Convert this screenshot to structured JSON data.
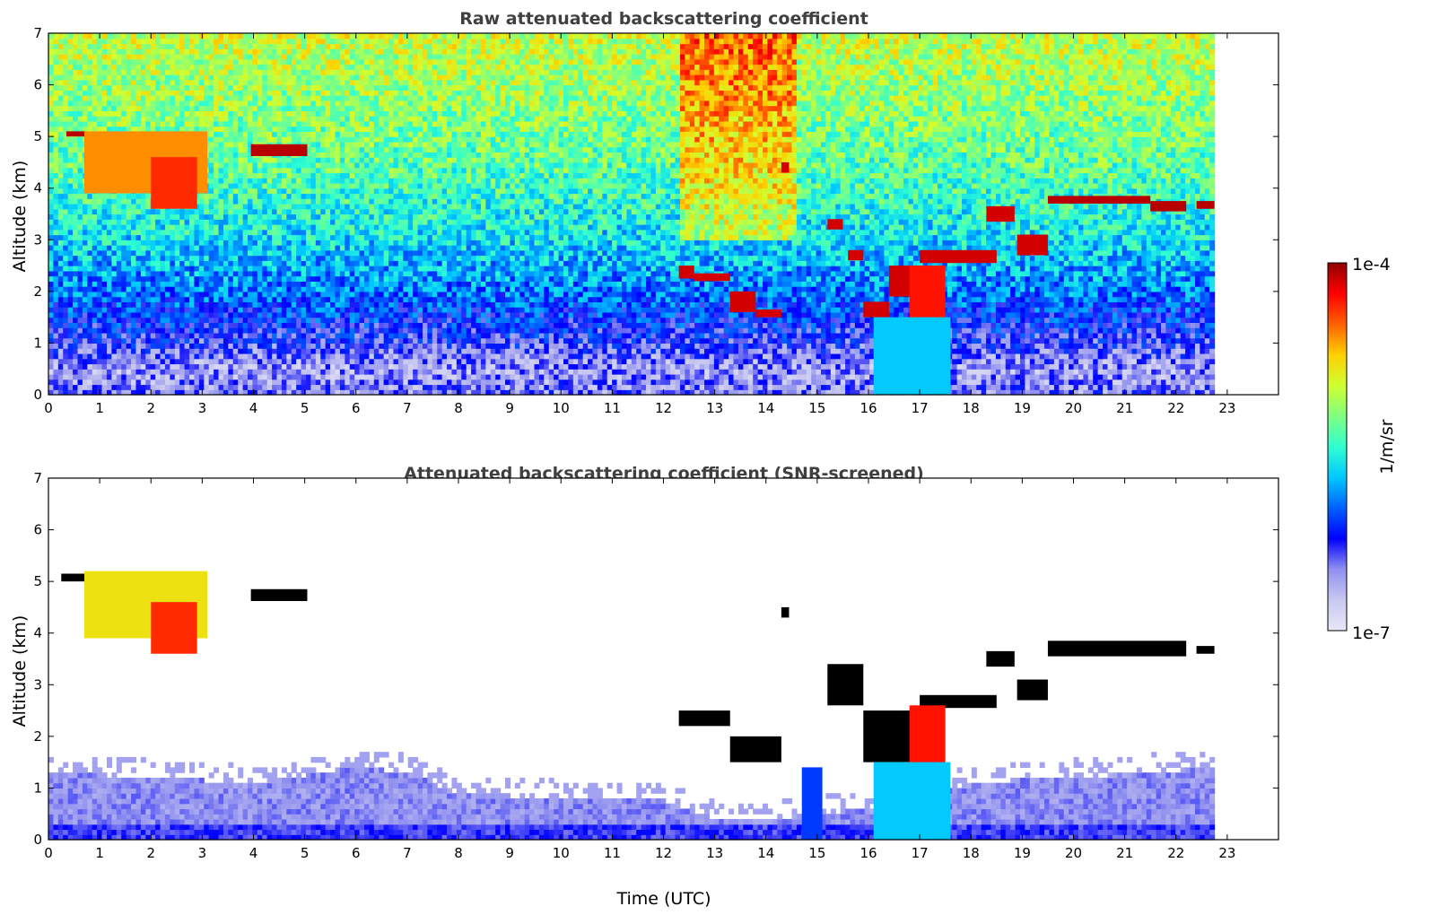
{
  "chart_data": [
    {
      "type": "heatmap",
      "title": "Raw attenuated backscattering coefficient",
      "xlabel": "",
      "ylabel": "Altitude (km)",
      "xlim": [
        0,
        24
      ],
      "ylim": [
        0,
        7
      ],
      "x_ticks": [
        "0",
        "1",
        "2",
        "3",
        "4",
        "5",
        "6",
        "7",
        "8",
        "9",
        "10",
        "11",
        "12",
        "13",
        "14",
        "15",
        "16",
        "17",
        "18",
        "19",
        "20",
        "21",
        "22",
        "23"
      ],
      "y_ticks": [
        "0",
        "1",
        "2",
        "3",
        "4",
        "5",
        "6",
        "7"
      ],
      "data_end_time": 22.75,
      "background_profile": [
        {
          "altitude": 0.0,
          "level": 0.18
        },
        {
          "altitude": 0.5,
          "level": 0.14
        },
        {
          "altitude": 1.0,
          "level": 0.22
        },
        {
          "altitude": 2.0,
          "level": 0.35
        },
        {
          "altitude": 3.0,
          "level": 0.45
        },
        {
          "altitude": 4.5,
          "level": 0.55
        },
        {
          "altitude": 7.0,
          "level": 0.66
        }
      ],
      "cloud_layers": [
        {
          "t0": 0.35,
          "t1": 0.75,
          "z0": 5.0,
          "z1": 5.1,
          "level": 0.97
        },
        {
          "t0": 0.7,
          "t1": 3.1,
          "z0": 3.9,
          "z1": 5.1,
          "level": 0.8
        },
        {
          "t0": 2.0,
          "t1": 2.9,
          "z0": 3.6,
          "z1": 4.6,
          "level": 0.88
        },
        {
          "t0": 3.95,
          "t1": 5.05,
          "z0": 4.62,
          "z1": 4.85,
          "level": 0.97
        },
        {
          "t0": 12.3,
          "t1": 12.6,
          "z0": 2.25,
          "z1": 2.5,
          "level": 0.95
        },
        {
          "t0": 12.6,
          "t1": 13.3,
          "z0": 2.2,
          "z1": 2.35,
          "level": 0.95
        },
        {
          "t0": 13.3,
          "t1": 13.8,
          "z0": 1.6,
          "z1": 2.0,
          "level": 0.95
        },
        {
          "t0": 13.8,
          "t1": 14.3,
          "z0": 1.5,
          "z1": 1.65,
          "level": 0.95
        },
        {
          "t0": 14.3,
          "t1": 14.45,
          "z0": 4.3,
          "z1": 4.5,
          "level": 0.95
        },
        {
          "t0": 15.2,
          "t1": 15.5,
          "z0": 3.2,
          "z1": 3.4,
          "level": 0.95
        },
        {
          "t0": 15.6,
          "t1": 15.9,
          "z0": 2.6,
          "z1": 2.8,
          "level": 0.95
        },
        {
          "t0": 15.9,
          "t1": 16.4,
          "z0": 1.5,
          "z1": 1.8,
          "level": 0.95
        },
        {
          "t0": 16.4,
          "t1": 17.0,
          "z0": 1.9,
          "z1": 2.5,
          "level": 0.95
        },
        {
          "t0": 17.0,
          "t1": 18.5,
          "z0": 2.55,
          "z1": 2.8,
          "level": 0.95
        },
        {
          "t0": 18.3,
          "t1": 18.85,
          "z0": 3.35,
          "z1": 3.65,
          "level": 0.95
        },
        {
          "t0": 18.9,
          "t1": 19.5,
          "z0": 2.7,
          "z1": 3.1,
          "level": 0.95
        },
        {
          "t0": 19.5,
          "t1": 21.5,
          "z0": 3.7,
          "z1": 3.85,
          "level": 0.97
        },
        {
          "t0": 21.5,
          "t1": 22.2,
          "z0": 3.55,
          "z1": 3.75,
          "level": 0.97
        },
        {
          "t0": 22.4,
          "t1": 22.75,
          "z0": 3.6,
          "z1": 3.75,
          "level": 0.97
        },
        {
          "t0": 16.8,
          "t1": 17.5,
          "z0": 1.3,
          "z1": 2.5,
          "level": 0.9
        },
        {
          "t0": 16.1,
          "t1": 17.6,
          "z0": 0.0,
          "z1": 1.5,
          "level": 0.42
        }
      ]
    },
    {
      "type": "heatmap",
      "title": "Attenuated backscattering coefficient (SNR-screened)",
      "xlabel": "Time (UTC)",
      "ylabel": "Altitude (km)",
      "xlim": [
        0,
        24
      ],
      "ylim": [
        0,
        7
      ],
      "x_ticks": [
        "0",
        "1",
        "2",
        "3",
        "4",
        "5",
        "6",
        "7",
        "8",
        "9",
        "10",
        "11",
        "12",
        "13",
        "14",
        "15",
        "16",
        "17",
        "18",
        "19",
        "20",
        "21",
        "22",
        "23"
      ],
      "y_ticks": [
        "0",
        "1",
        "2",
        "3",
        "4",
        "5",
        "6",
        "7"
      ],
      "data_end_time": 22.75,
      "boundary_layer_top": [
        {
          "time": 0,
          "altitude": 1.3
        },
        {
          "time": 2,
          "altitude": 1.2
        },
        {
          "time": 4,
          "altitude": 1.1
        },
        {
          "time": 6,
          "altitude": 1.4
        },
        {
          "time": 7,
          "altitude": 1.3
        },
        {
          "time": 8,
          "altitude": 0.9
        },
        {
          "time": 10,
          "altitude": 0.8
        },
        {
          "time": 12,
          "altitude": 0.75
        },
        {
          "time": 13,
          "altitude": 0.4
        },
        {
          "time": 14,
          "altitude": 0.4
        },
        {
          "time": 15,
          "altitude": 0.5
        },
        {
          "time": 16,
          "altitude": 0.6
        },
        {
          "time": 18,
          "altitude": 1.1
        },
        {
          "time": 20,
          "altitude": 1.2
        },
        {
          "time": 22.75,
          "altitude": 1.4
        }
      ],
      "cloud_layers": [
        {
          "t0": 0.25,
          "t1": 0.9,
          "z0": 5.0,
          "z1": 5.15,
          "level": 1.0
        },
        {
          "t0": 0.7,
          "t1": 3.1,
          "z0": 3.9,
          "z1": 5.2,
          "level": 0.72
        },
        {
          "t0": 2.0,
          "t1": 2.9,
          "z0": 3.6,
          "z1": 4.6,
          "level": 0.88
        },
        {
          "t0": 3.95,
          "t1": 5.05,
          "z0": 4.62,
          "z1": 4.85,
          "level": 1.0
        },
        {
          "t0": 12.3,
          "t1": 13.3,
          "z0": 2.2,
          "z1": 2.5,
          "level": 1.0
        },
        {
          "t0": 13.3,
          "t1": 14.3,
          "z0": 1.5,
          "z1": 2.0,
          "level": 1.0
        },
        {
          "t0": 14.3,
          "t1": 14.45,
          "z0": 4.3,
          "z1": 4.5,
          "level": 1.0
        },
        {
          "t0": 15.2,
          "t1": 15.9,
          "z0": 2.6,
          "z1": 3.4,
          "level": 1.0
        },
        {
          "t0": 15.9,
          "t1": 17.0,
          "z0": 1.5,
          "z1": 2.5,
          "level": 1.0
        },
        {
          "t0": 17.0,
          "t1": 18.5,
          "z0": 2.55,
          "z1": 2.8,
          "level": 1.0
        },
        {
          "t0": 18.3,
          "t1": 18.85,
          "z0": 3.35,
          "z1": 3.65,
          "level": 1.0
        },
        {
          "t0": 18.9,
          "t1": 19.5,
          "z0": 2.7,
          "z1": 3.1,
          "level": 1.0
        },
        {
          "t0": 19.5,
          "t1": 22.2,
          "z0": 3.55,
          "z1": 3.85,
          "level": 1.0
        },
        {
          "t0": 22.4,
          "t1": 22.75,
          "z0": 3.6,
          "z1": 3.75,
          "level": 1.0
        },
        {
          "t0": 16.8,
          "t1": 17.5,
          "z0": 1.3,
          "z1": 2.6,
          "level": 0.9
        },
        {
          "t0": 16.1,
          "t1": 17.6,
          "z0": 0.0,
          "z1": 1.5,
          "level": 0.42
        },
        {
          "t0": 14.7,
          "t1": 15.1,
          "z0": 0.0,
          "z1": 1.4,
          "level": 0.3
        }
      ]
    }
  ],
  "colorbar": {
    "label": "1/m/sr",
    "max_label": "1e-4",
    "min_label": "1e-7",
    "colors": [
      "#e8e8f8",
      "#c8c8f0",
      "#9090f0",
      "#0000ff",
      "#0060ff",
      "#00c8ff",
      "#30ffd0",
      "#80ff80",
      "#d0ff30",
      "#ffd000",
      "#ff6000",
      "#ff0000",
      "#900000"
    ]
  }
}
